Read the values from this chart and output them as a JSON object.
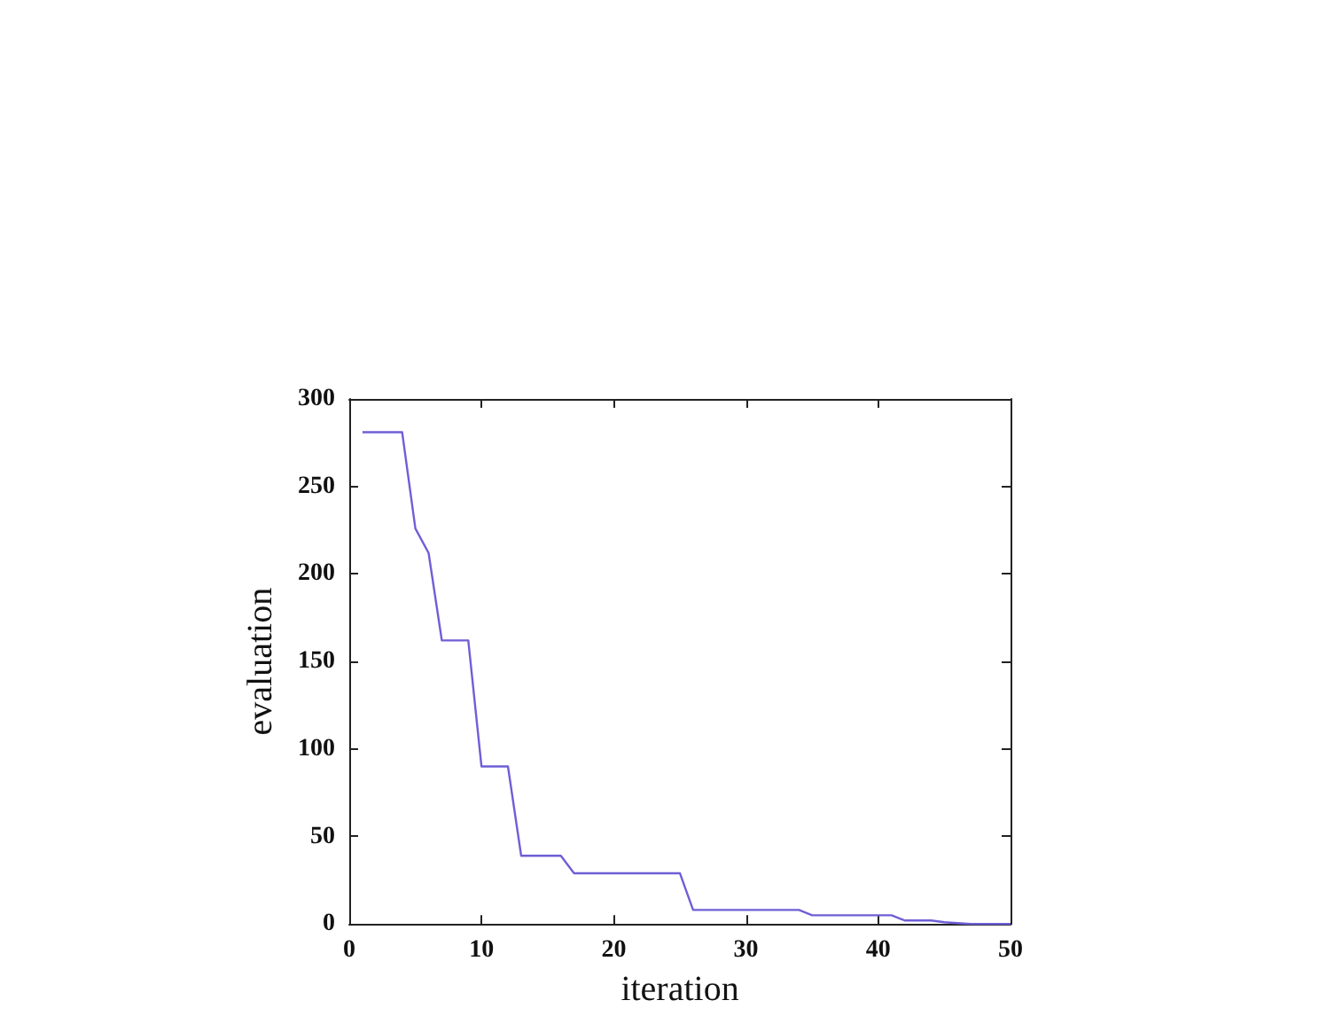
{
  "chart_data": {
    "type": "line",
    "xlabel": "iteration",
    "ylabel": "evaluation",
    "x": [
      1,
      4,
      5,
      6,
      7,
      9,
      10,
      12,
      13,
      16,
      17,
      25,
      26,
      34,
      35,
      41,
      42,
      44,
      45,
      47,
      50
    ],
    "values": [
      281,
      281,
      226,
      212,
      162,
      162,
      90,
      90,
      39,
      39,
      29,
      29,
      8,
      8,
      5,
      5,
      2,
      2,
      1,
      0,
      0
    ],
    "color": "#6f5fd6",
    "xlim": [
      0,
      50
    ],
    "xticks": [
      0,
      10,
      20,
      30,
      40,
      50
    ],
    "ylim": [
      0,
      300
    ],
    "yticks": [
      0,
      50,
      100,
      150,
      200,
      250,
      300
    ],
    "marker": "none",
    "line_style": "solid"
  }
}
